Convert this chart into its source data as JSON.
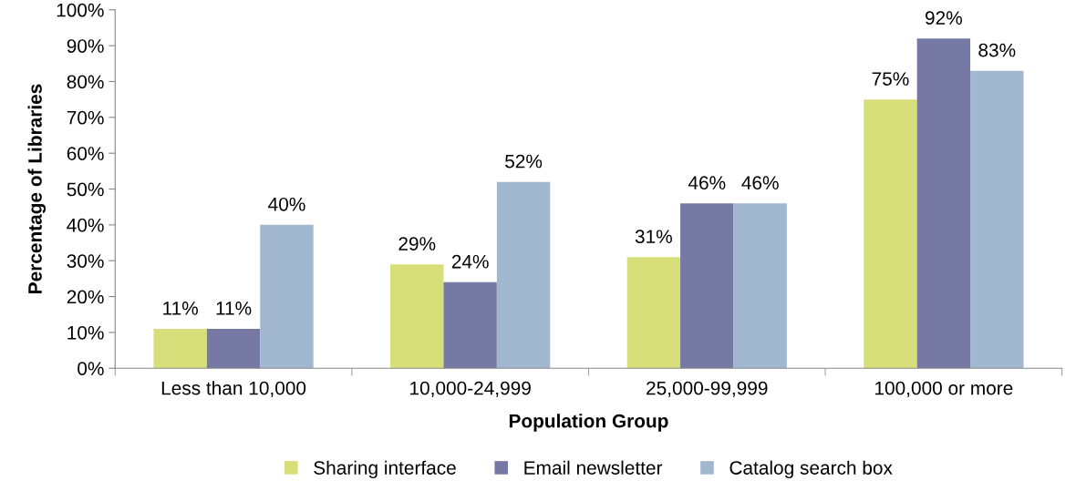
{
  "chart_data": {
    "type": "bar",
    "xlabel": "Population Group",
    "ylabel": "Percentage of Libraries",
    "categories": [
      "Less than 10,000",
      "10,000-24,999",
      "25,000-99,999",
      "100,000 or more"
    ],
    "series": [
      {
        "name": "Sharing interface",
        "color": "#d7df7a",
        "values": [
          11,
          29,
          31,
          75
        ],
        "value_labels": [
          "11%",
          "29%",
          "31%",
          "75%"
        ]
      },
      {
        "name": "Email newsletter",
        "color": "#7579a3",
        "values": [
          11,
          24,
          46,
          92
        ],
        "value_labels": [
          "11%",
          "24%",
          "46%",
          "92%"
        ]
      },
      {
        "name": "Catalog search box",
        "color": "#a1b7d0",
        "values": [
          40,
          52,
          46,
          83
        ],
        "value_labels": [
          "40%",
          "52%",
          "46%",
          "83%"
        ]
      }
    ],
    "ylim": [
      0,
      100
    ],
    "yticks": [
      {
        "value": 0,
        "label": "0%"
      },
      {
        "value": 10,
        "label": "10%"
      },
      {
        "value": 20,
        "label": "20%"
      },
      {
        "value": 30,
        "label": "30%"
      },
      {
        "value": 40,
        "label": "40%"
      },
      {
        "value": 50,
        "label": "50%"
      },
      {
        "value": 60,
        "label": "60%"
      },
      {
        "value": 70,
        "label": "70%"
      },
      {
        "value": 80,
        "label": "80%"
      },
      {
        "value": 90,
        "label": "90%"
      },
      {
        "value": 100,
        "label": "100%"
      }
    ],
    "grid": false,
    "legend": "bottom"
  }
}
